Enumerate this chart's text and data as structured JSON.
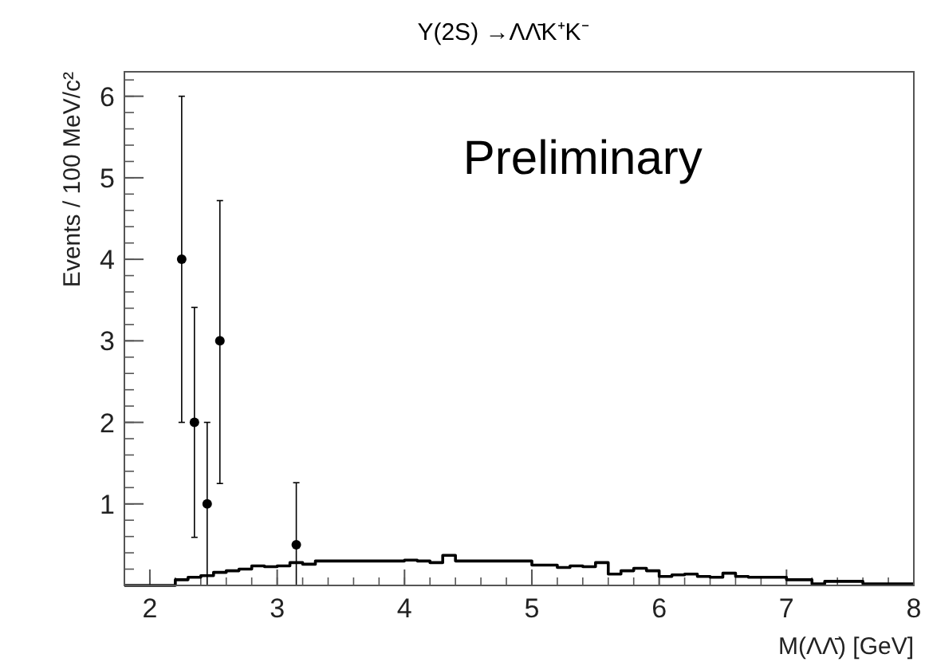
{
  "chart_data": {
    "type": "scatter",
    "title": "Υ(2S) →ΛΛ̄K⁺K⁻",
    "xlabel": "M(ΛΛ̄) [GeV]",
    "ylabel": "Events / 100 MeV/c²",
    "annotations": [
      "Preliminary"
    ],
    "xlim": [
      1.8,
      8
    ],
    "xticks": [
      2,
      3,
      4,
      5,
      6,
      7,
      8
    ],
    "ylim": [
      0,
      6.3
    ],
    "yticks": [
      1,
      2,
      3,
      4,
      5,
      6
    ],
    "grid": false,
    "marker": "circle",
    "series": [
      {
        "color": "#000000",
        "x": [
          2.25,
          2.35,
          2.45,
          2.55,
          3.15
        ],
        "values": [
          4,
          2,
          1,
          3,
          0.5
        ],
        "errors": [
          [
            2,
            6
          ],
          [
            0.59,
            3.41
          ],
          [
            0,
            2
          ],
          [
            1.25,
            4.72
          ],
          [
            0,
            1.26
          ]
        ]
      },
      {
        "type": "step",
        "color": "#000000",
        "marker": "none",
        "x": [
          1.8,
          2.2,
          2.3,
          2.4,
          2.5,
          2.6,
          2.7,
          2.8,
          2.9,
          3.0,
          3.1,
          3.2,
          3.3,
          4.0,
          4.1,
          4.2,
          4.3,
          4.4,
          5.0,
          5.2,
          5.3,
          5.4,
          5.5,
          5.6,
          5.7,
          5.8,
          5.9,
          6.0,
          6.1,
          6.2,
          6.3,
          6.4,
          6.5,
          6.6,
          6.7,
          7.0,
          7.2,
          7.3,
          7.6,
          8.0
        ],
        "values": [
          0,
          0.07,
          0.1,
          0.12,
          0.16,
          0.18,
          0.2,
          0.24,
          0.23,
          0.24,
          0.28,
          0.26,
          0.3,
          0.31,
          0.3,
          0.28,
          0.37,
          0.3,
          0.25,
          0.22,
          0.24,
          0.23,
          0.28,
          0.14,
          0.18,
          0.21,
          0.18,
          0.11,
          0.13,
          0.14,
          0.11,
          0.1,
          0.15,
          0.11,
          0.1,
          0.07,
          0.02,
          0.05,
          0.02,
          0.02
        ]
      }
    ]
  }
}
